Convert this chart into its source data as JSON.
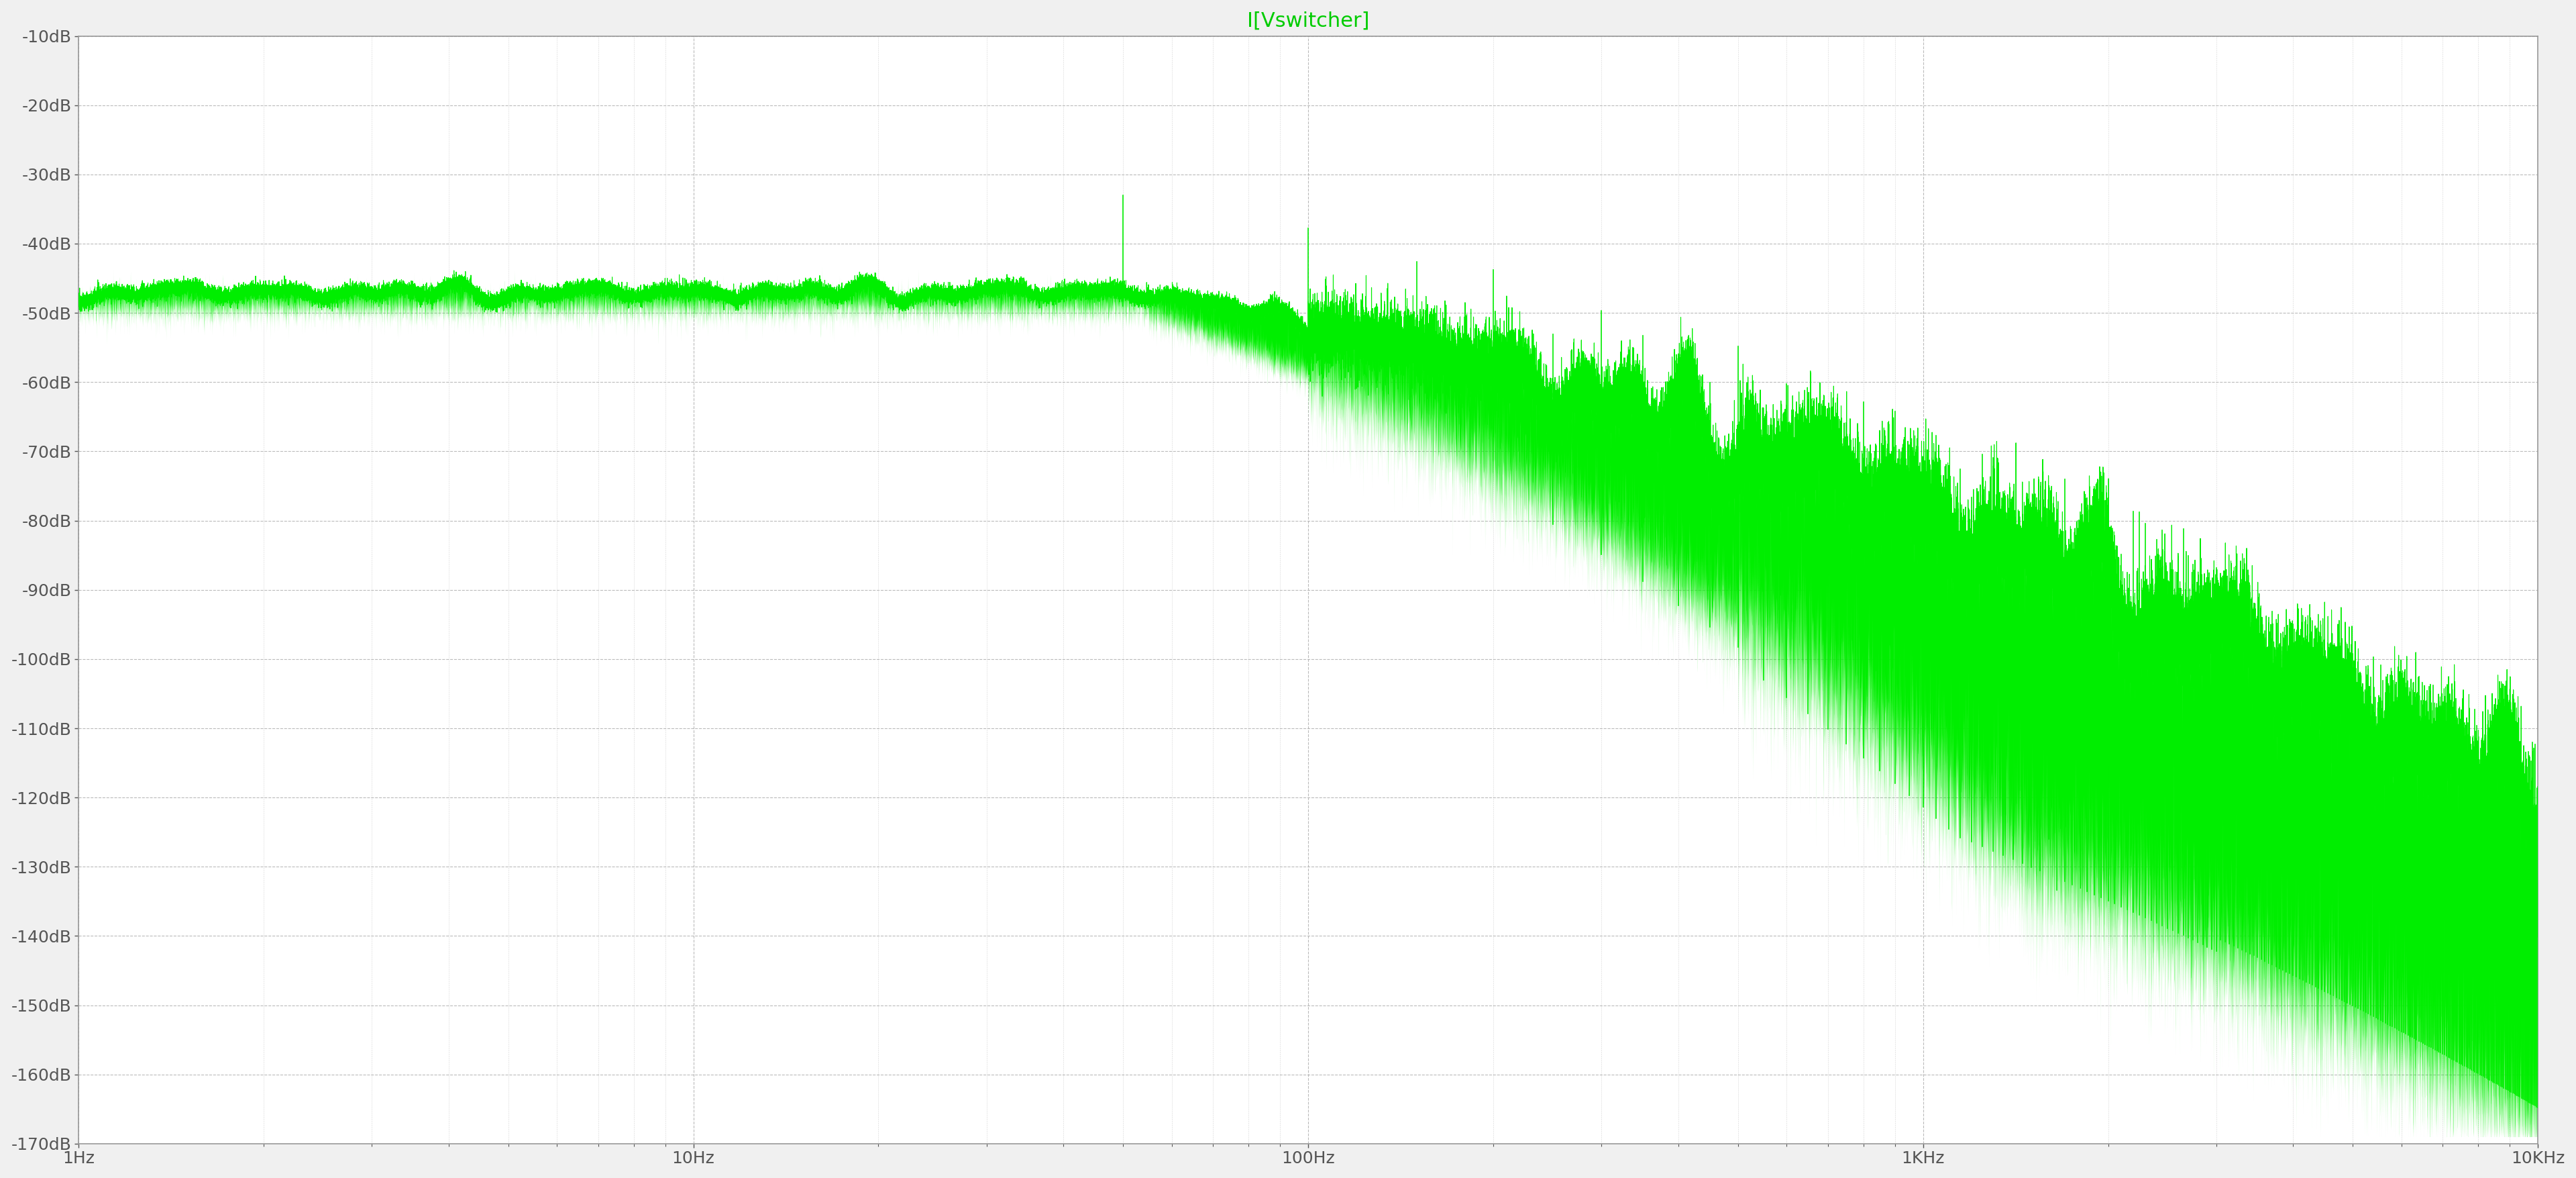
{
  "title": "I[Vswitcher]",
  "title_color": "#00cc00",
  "bg_color": "#f0f0f0",
  "plot_bg_color": "#ffffff",
  "grid_color": "#aaaaaa",
  "line_color": "#00ee00",
  "fill_color": "#00ee00",
  "xmin": 1,
  "xmax": 10000,
  "ymin": -170,
  "ymax": -10,
  "yticks": [
    -10,
    -20,
    -30,
    -40,
    -50,
    -60,
    -70,
    -80,
    -90,
    -100,
    -110,
    -120,
    -130,
    -140,
    -150,
    -160,
    -170
  ],
  "xtick_labels": [
    "1Hz",
    "10Hz",
    "100Hz",
    "1KHz",
    "10KHz"
  ],
  "xtick_positions": [
    1,
    10,
    100,
    1000,
    10000
  ],
  "tick_color": "#555555",
  "switching_freq": 50,
  "base_level": -47,
  "title_fontsize": 22,
  "tick_fontsize": 18
}
